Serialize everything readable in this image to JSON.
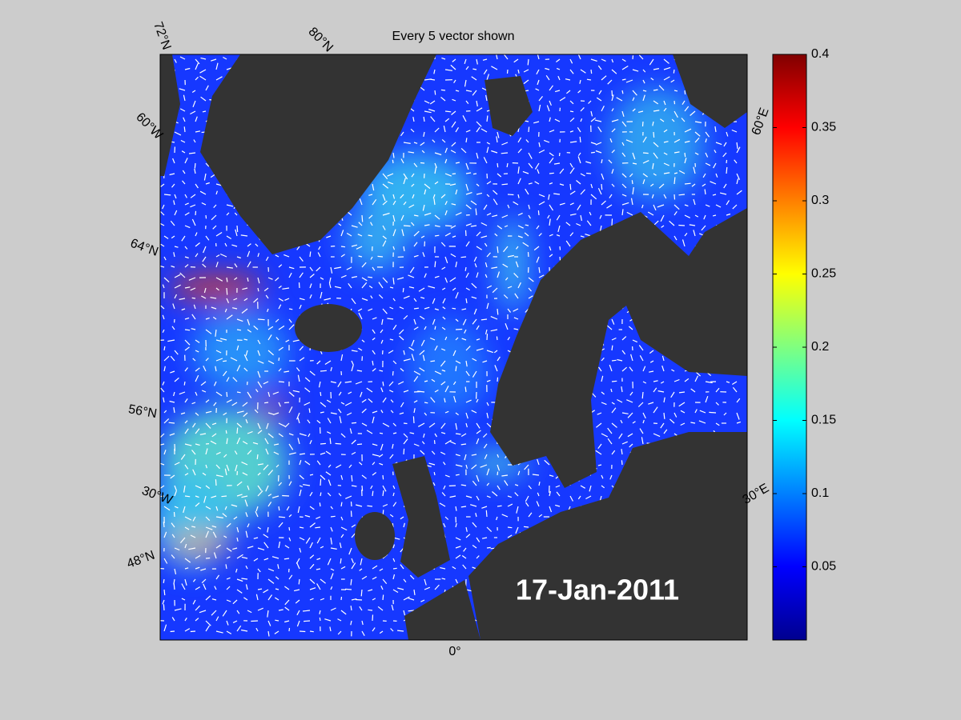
{
  "map": {
    "title": "Every 5 vector shown",
    "date": "17-Jan-2011",
    "graticule_labels": [
      "72°N",
      "80°N",
      "60°W",
      "64°N",
      "56°N",
      "30°W",
      "48°N",
      "0°",
      "30°E",
      "60°E"
    ],
    "colormap": "jet",
    "colorbar": {
      "lim": [
        0,
        0.4
      ],
      "ticks": [
        0.05,
        0.1,
        0.15,
        0.2,
        0.25,
        0.3,
        0.35,
        0.4
      ]
    }
  }
}
